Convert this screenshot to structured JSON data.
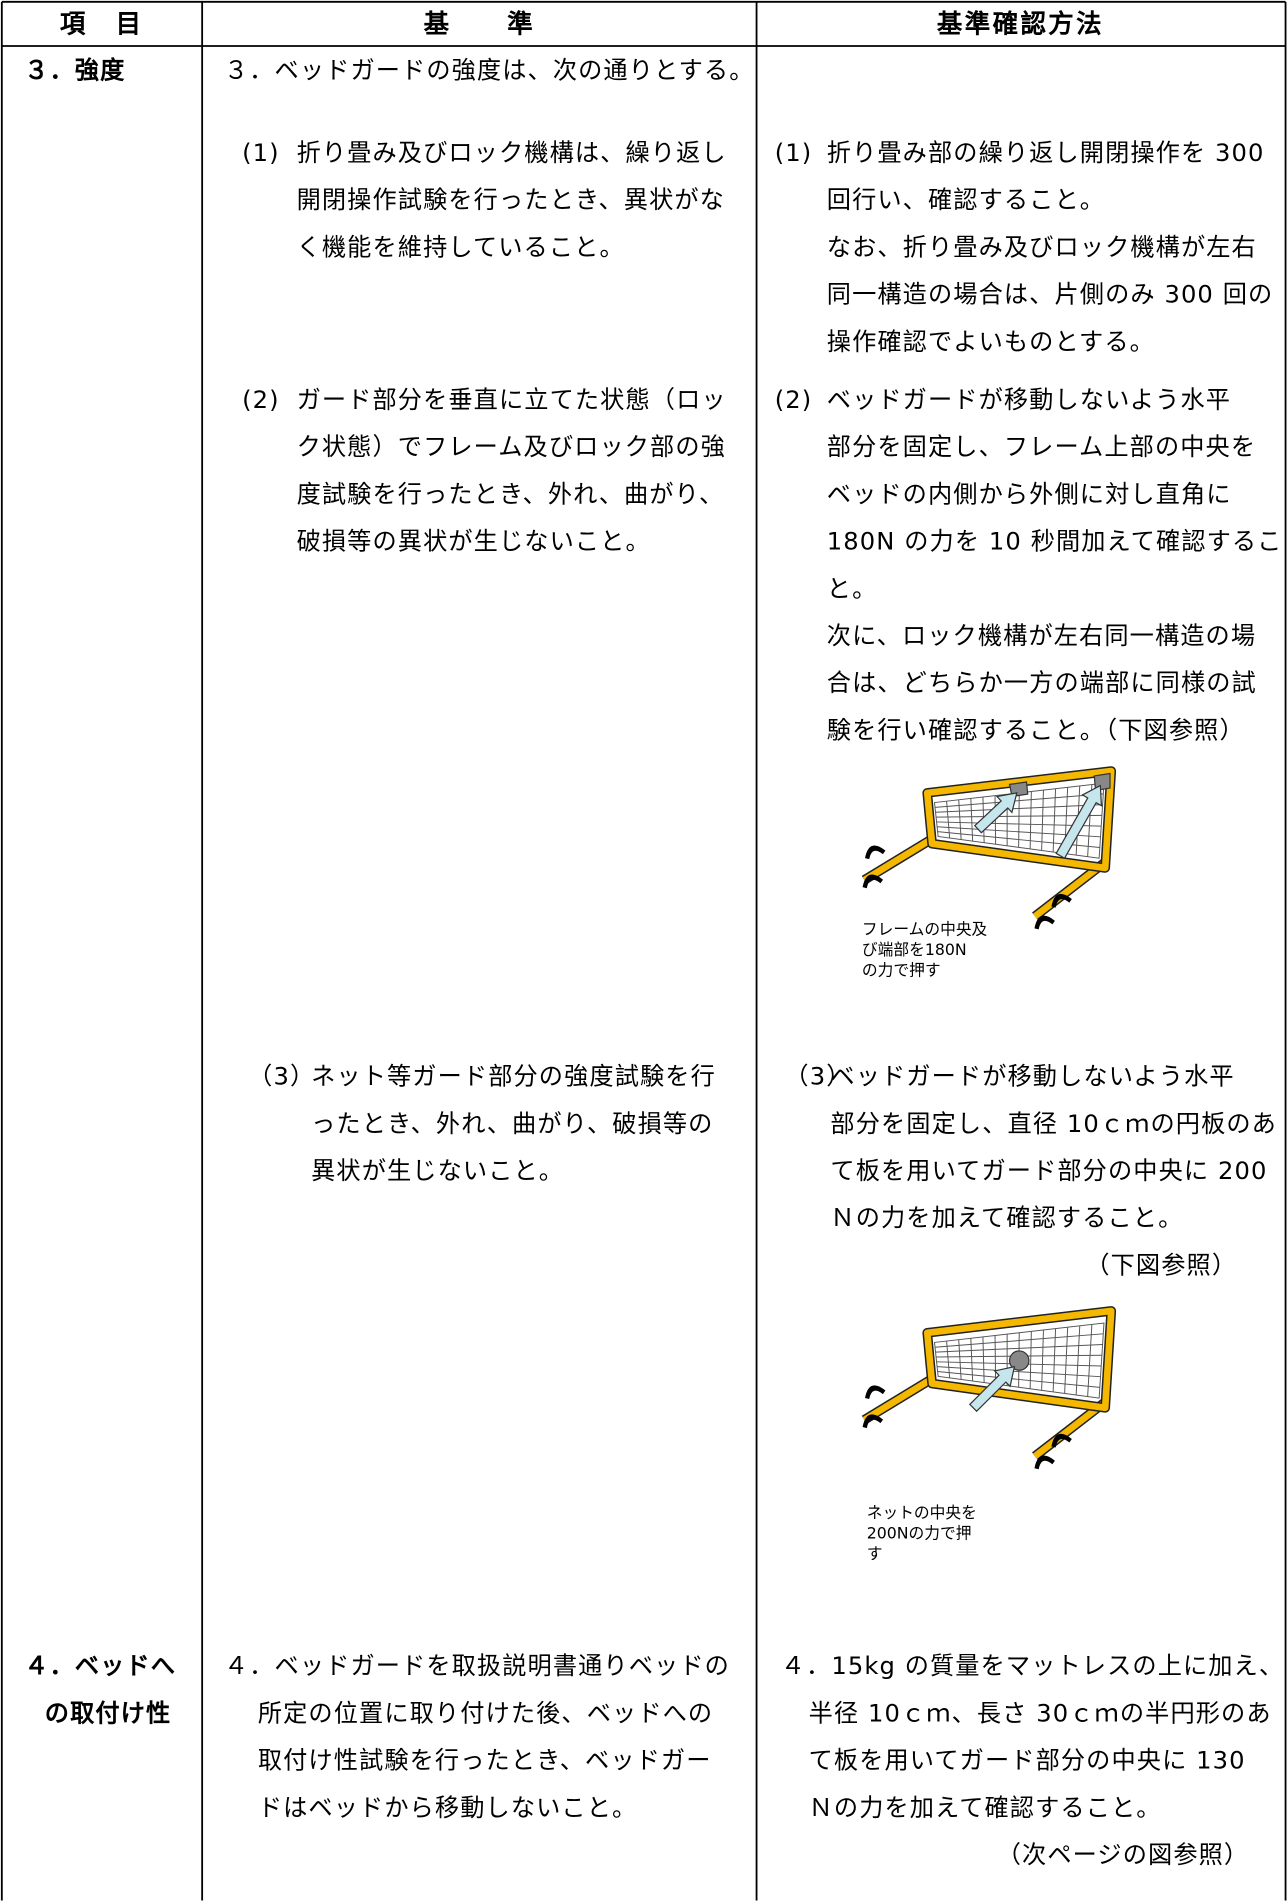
{
  "table": {
    "header": [
      "項　目",
      "基　　準",
      "基準確認方法"
    ],
    "rows": [
      {
        "item": [
          "３．強度"
        ],
        "criteria": {
          "intro": [
            "３．ベッドガードの強度は、次の通りとする。"
          ],
          "items": [
            {
              "label": "(1)",
              "lines": [
                "折り畳み及びロック機構は、繰り返し",
                "開閉操作試験を行ったとき、異状がな",
                "く機能を維持していること。"
              ]
            },
            {
              "label": "(2)",
              "lines": [
                "ガード部分を垂直に立てた状態（ロッ",
                "ク状態）でフレーム及びロック部の強",
                "度試験を行ったとき、外れ、曲がり、",
                "破損等の異状が生じないこと。"
              ]
            },
            {
              "label": "（3）",
              "lines": [
                "ネット等ガード部分の強度試験を行",
                "ったとき、外れ、曲がり、破損等の",
                "異状が生じないこと。"
              ]
            }
          ]
        },
        "method": {
          "items": [
            {
              "label": "(1)",
              "lines": [
                "折り畳み部の繰り返し開閉操作を 300",
                "回行い、確認すること。",
                "なお、折り畳み及びロック機構が左右",
                "同一構造の場合は、片側のみ 300 回の",
                "操作確認でよいものとする。"
              ]
            },
            {
              "label": "(2)",
              "lines": [
                "ベッドガードが移動しないよう水平",
                "部分を固定し、フレーム上部の中央を",
                "ベッドの内側から外側に対し直角に",
                "180N の力を 10 秒間加えて確認するこ",
                "と。",
                "次に、ロック機構が左右同一構造の場",
                "合は、どちらか一方の端部に同様の試",
                "験を行い確認すること。（下図参照）"
              ],
              "figure_caption": [
                "フレームの中央及",
                "び端部を180N",
                "の力で押す"
              ]
            },
            {
              "label": "（3）",
              "lines": [
                "ベッドガードが移動しないよう水平",
                "部分を固定し、直径 10ｃｍの円板のあ",
                "て板を用いてガード部分の中央に 200",
                "Ｎの力を加えて確認すること。"
              ],
              "note": "（下図参照）",
              "figure_caption": [
                "ネットの中央を",
                "200Nの力で押",
                "す"
              ]
            }
          ]
        }
      },
      {
        "item": [
          "４．ベッドへ",
          "の取付け性"
        ],
        "criteria": {
          "lines": [
            "４．ベッドガードを取扱説明書通りベッドの",
            "所定の位置に取り付けた後、ベッドへの",
            "取付け性試験を行ったとき、ベッドガー",
            "ドはベッドから移動しないこと。"
          ]
        },
        "method": {
          "lines": [
            "４．15kg の質量をマットレスの上に加え、",
            "半径 10ｃｍ、長さ 30ｃｍの半円形のあ",
            "て板を用いてガード部分の中央に 130",
            "Ｎの力を加えて確認すること。"
          ],
          "note": "（次ページの図参照）"
        }
      }
    ]
  }
}
